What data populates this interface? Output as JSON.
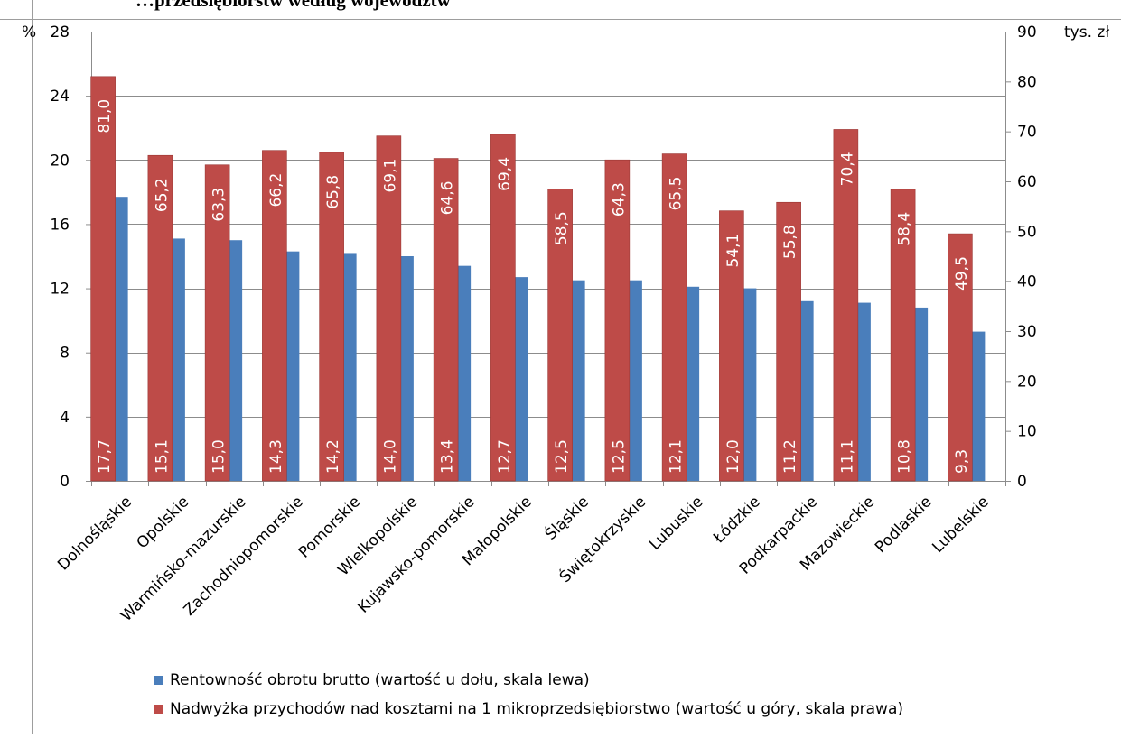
{
  "page": {
    "title": "…przedsiębiorstw według województw"
  },
  "chart_data": {
    "type": "bar",
    "categories": [
      "Dolnośląskie",
      "Opolskie",
      "Warmińsko-mazurskie",
      "Zachodniopomorskie",
      "Pomorskie",
      "Wielkopolskie",
      "Kujawsko-pomorskie",
      "Małopolskie",
      "Śląskie",
      "Świętokrzyskie",
      "Lubuskie",
      "Łódzkie",
      "Podkarpackie",
      "Mazowieckie",
      "Podlaskie",
      "Lubelskie"
    ],
    "series": [
      {
        "name": "Rentowność obrotu brutto (wartość u dołu, skala lewa)",
        "axis": "left",
        "color": "#4a7ebb",
        "values": [
          17.7,
          15.1,
          15.0,
          14.3,
          14.2,
          14.0,
          13.4,
          12.7,
          12.5,
          12.5,
          12.1,
          12.0,
          11.2,
          11.1,
          10.8,
          9.3
        ],
        "labels": [
          "17,7",
          "15,1",
          "15,0",
          "14,3",
          "14,2",
          "14,0",
          "13,4",
          "12,7",
          "12,5",
          "12,5",
          "12,1",
          "12,0",
          "11,2",
          "11,1",
          "10,8",
          "9,3"
        ]
      },
      {
        "name": "Nadwyżka przychodów nad kosztami na 1 mikroprzedsiębiorstwo (wartość u góry, skala prawa)",
        "axis": "right",
        "color": "#be4b48",
        "values": [
          81.0,
          65.2,
          63.3,
          66.2,
          65.8,
          69.1,
          64.6,
          69.4,
          58.5,
          64.3,
          65.5,
          54.1,
          55.8,
          70.4,
          58.4,
          49.5
        ],
        "labels": [
          "81,0",
          "65,2",
          "63,3",
          "66,2",
          "65,8",
          "69,1",
          "64,6",
          "69,4",
          "58,5",
          "64,3",
          "65,5",
          "54,1",
          "55,8",
          "70,4",
          "58,4",
          "49,5"
        ]
      }
    ],
    "y_left": {
      "unit": "%",
      "ylim": [
        0,
        28
      ],
      "ticks": [
        "0",
        "4",
        "8",
        "12",
        "16",
        "20",
        "24",
        "28"
      ]
    },
    "y_right": {
      "unit": "tys. zł",
      "ylim": [
        0,
        90
      ],
      "ticks": [
        "0",
        "10",
        "20",
        "30",
        "40",
        "50",
        "60",
        "70",
        "80",
        "90"
      ]
    },
    "grid": true,
    "legend_position": "bottom"
  }
}
